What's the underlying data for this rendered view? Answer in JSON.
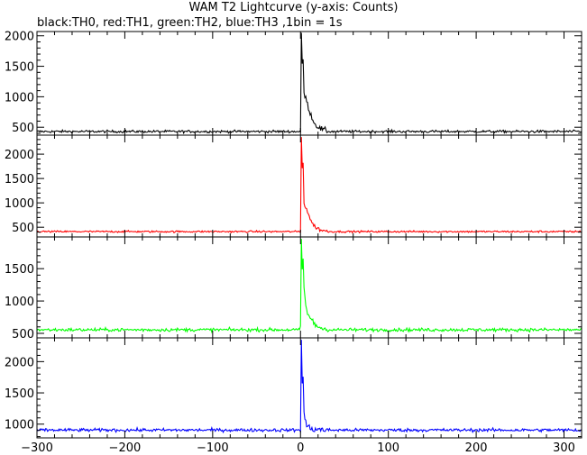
{
  "title": "WAM T2 Lightcurve (y-axis: Counts)",
  "subtitle": "black:TH0, red:TH1, green:TH2, blue:TH3 ,1bin = 1s",
  "chart_data": {
    "type": "line",
    "x_range": [
      -300,
      320
    ],
    "x_ticks": [
      -300,
      -200,
      -100,
      0,
      100,
      200,
      300
    ],
    "x_tick_labels": [
      "−300",
      "−200",
      "−100",
      "0",
      "100",
      "200",
      "300"
    ],
    "bin_seconds": 1,
    "grid": false,
    "panels": [
      {
        "series_color": "#000000",
        "ylim": [
          370,
          2070
        ],
        "y_ticks": [
          500,
          1000,
          1500,
          2000
        ],
        "baseline": 430,
        "noise": 22,
        "peak_t": 1,
        "peak_value": 2050,
        "key_points": [
          {
            "t": 0,
            "v": 430
          },
          {
            "t": 1,
            "v": 2050
          },
          {
            "t": 2,
            "v": 1500
          },
          {
            "t": 3,
            "v": 1620
          },
          {
            "t": 4,
            "v": 1050
          },
          {
            "t": 6,
            "v": 980
          },
          {
            "t": 9,
            "v": 820
          },
          {
            "t": 12,
            "v": 700
          },
          {
            "t": 16,
            "v": 560
          },
          {
            "t": 22,
            "v": 480
          },
          {
            "t": 30,
            "v": 440
          }
        ]
      },
      {
        "series_color": "#ff0000",
        "ylim": [
          300,
          2390
        ],
        "y_ticks": [
          500,
          1000,
          1500,
          2000
        ],
        "baseline": 410,
        "noise": 20,
        "peak_t": 1,
        "peak_value": 2350,
        "key_points": [
          {
            "t": 0,
            "v": 410
          },
          {
            "t": 1,
            "v": 2350
          },
          {
            "t": 2,
            "v": 1700
          },
          {
            "t": 3,
            "v": 1850
          },
          {
            "t": 4,
            "v": 1000
          },
          {
            "t": 6,
            "v": 900
          },
          {
            "t": 9,
            "v": 780
          },
          {
            "t": 12,
            "v": 620
          },
          {
            "t": 16,
            "v": 520
          },
          {
            "t": 22,
            "v": 450
          },
          {
            "t": 30,
            "v": 415
          }
        ]
      },
      {
        "series_color": "#00ff00",
        "ylim": [
          430,
          1990
        ],
        "y_ticks": [
          500,
          1000,
          1500
        ],
        "baseline": 555,
        "noise": 28,
        "peak_t": 1,
        "peak_value": 1960,
        "key_points": [
          {
            "t": 0,
            "v": 555
          },
          {
            "t": 1,
            "v": 1960
          },
          {
            "t": 2,
            "v": 1500
          },
          {
            "t": 3,
            "v": 1650
          },
          {
            "t": 4,
            "v": 1200
          },
          {
            "t": 5,
            "v": 1050
          },
          {
            "t": 7,
            "v": 850
          },
          {
            "t": 10,
            "v": 760
          },
          {
            "t": 15,
            "v": 650
          },
          {
            "t": 22,
            "v": 590
          },
          {
            "t": 30,
            "v": 560
          }
        ]
      },
      {
        "series_color": "#0000ff",
        "ylim": [
          780,
          2380
        ],
        "y_ticks": [
          1000,
          1500,
          2000
        ],
        "baseline": 905,
        "noise": 28,
        "peak_t": 1,
        "peak_value": 2350,
        "key_points": [
          {
            "t": 0,
            "v": 905
          },
          {
            "t": 1,
            "v": 2350
          },
          {
            "t": 2,
            "v": 1700
          },
          {
            "t": 3,
            "v": 1750
          },
          {
            "t": 4,
            "v": 1200
          },
          {
            "t": 5,
            "v": 1060
          },
          {
            "t": 7,
            "v": 980
          },
          {
            "t": 10,
            "v": 940
          },
          {
            "t": 15,
            "v": 920
          },
          {
            "t": 30,
            "v": 905
          }
        ]
      }
    ]
  }
}
